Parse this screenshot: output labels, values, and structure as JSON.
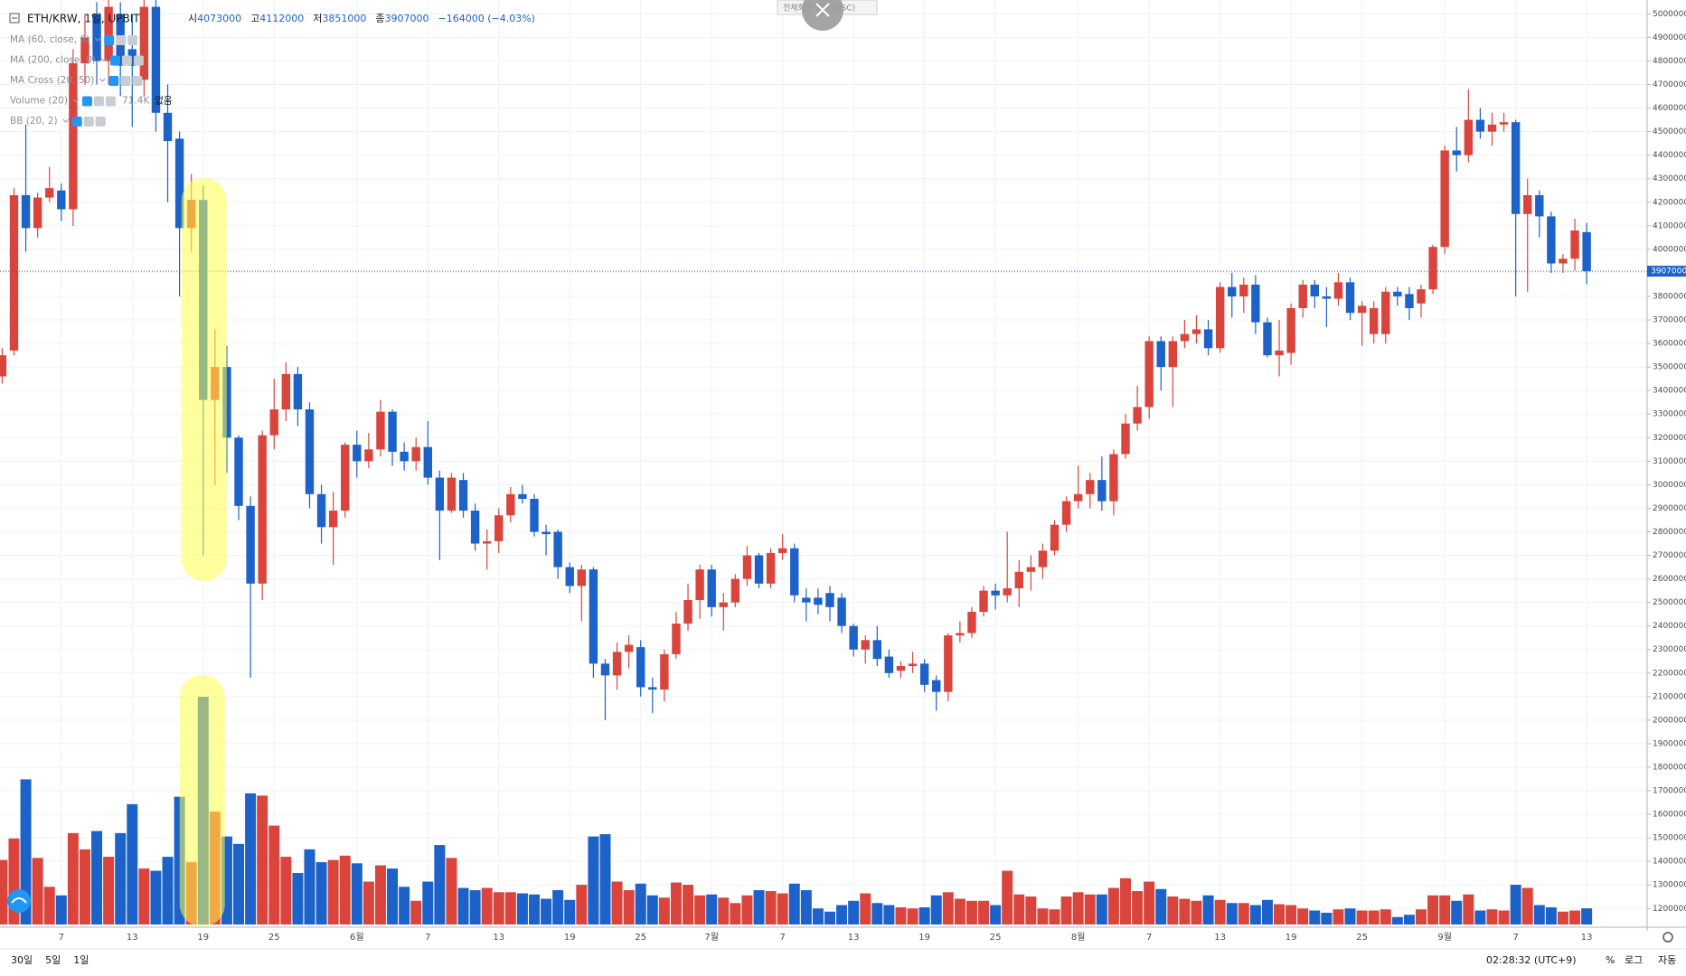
{
  "header": {
    "symbol": "ETH/KRW, 1일, UPBIT",
    "open_label": "시",
    "high_label": "고",
    "low_label": "저",
    "close_label": "종",
    "change": "−164000 (−4.03%)"
  },
  "indicators": [
    {
      "name": "MA (60, close, 0)"
    },
    {
      "name": "MA (200, close, 0)"
    },
    {
      "name": "MA Cross (20, 50)"
    },
    {
      "name": "Volume (20)",
      "value": "71.4K",
      "extra": "없음"
    },
    {
      "name": "BB (20, 2)"
    }
  ],
  "fullscreen_hint": "전체화면 종료 (ESC)",
  "toolbar": {
    "ranges": [
      "30일",
      "5일",
      "1일"
    ],
    "clock": "02:28:32 (UTC+9)",
    "percent": "%",
    "log": "로그",
    "auto": "자동"
  },
  "chart_data": {
    "type": "candlestick",
    "up_color": "#d9453d",
    "down_color": "#1c62c8",
    "grid": true,
    "last_price_line": true,
    "categories": [
      null,
      null,
      null,
      null,
      null,
      "7",
      null,
      null,
      null,
      null,
      null,
      "13",
      null,
      null,
      null,
      null,
      null,
      "19",
      null,
      null,
      null,
      null,
      null,
      "25",
      null,
      null,
      null,
      null,
      null,
      null,
      "6월",
      null,
      null,
      null,
      null,
      null,
      "7",
      null,
      null,
      null,
      null,
      null,
      "13",
      null,
      null,
      null,
      null,
      null,
      "19",
      null,
      null,
      null,
      null,
      null,
      "25",
      null,
      null,
      null,
      null,
      null,
      "7월",
      null,
      null,
      null,
      null,
      null,
      "7",
      null,
      null,
      null,
      null,
      null,
      "13",
      null,
      null,
      null,
      null,
      null,
      "19",
      null,
      null,
      null,
      null,
      null,
      "25",
      null,
      null,
      null,
      null,
      null,
      null,
      "8월",
      null,
      null,
      null,
      null,
      null,
      "7",
      null,
      null,
      null,
      null,
      null,
      "13",
      null,
      null,
      null,
      null,
      null,
      "19",
      null,
      null,
      null,
      null,
      null,
      "25",
      null,
      null,
      null,
      null,
      null,
      null,
      "9월",
      null,
      null,
      null,
      null,
      null,
      "7",
      null,
      null,
      null,
      null,
      null,
      "13"
    ],
    "open": [
      3460000,
      3570000,
      4230000,
      4090000,
      4220000,
      4250000,
      4170000,
      4790000,
      5000000,
      4800000,
      5000000,
      4850000,
      4720000,
      5030000,
      4580000,
      4470000,
      4090000,
      4210000,
      3360000,
      3500000,
      3200000,
      2910000,
      2580000,
      3210000,
      3320000,
      3470000,
      3320000,
      2960000,
      2820000,
      2890000,
      3170000,
      3100000,
      3150000,
      3310000,
      3140000,
      3100000,
      3160000,
      3030000,
      2890000,
      3020000,
      2890000,
      2750000,
      2760000,
      2870000,
      2960000,
      2940000,
      2800000,
      2800000,
      2650000,
      2570000,
      2640000,
      2240000,
      2190000,
      2290000,
      2310000,
      2140000,
      2130000,
      2280000,
      2410000,
      2510000,
      2640000,
      2480000,
      2500000,
      2600000,
      2700000,
      2580000,
      2710000,
      2730000,
      2520000,
      2520000,
      2540000,
      2520000,
      2400000,
      2300000,
      2340000,
      2270000,
      2210000,
      2230000,
      2240000,
      2170000,
      2120000,
      2360000,
      2370000,
      2460000,
      2550000,
      2530000,
      2560000,
      2630000,
      2650000,
      2720000,
      2830000,
      2930000,
      2960000,
      3020000,
      2930000,
      3130000,
      3260000,
      3330000,
      3610000,
      3500000,
      3610000,
      3640000,
      3660000,
      3580000,
      3840000,
      3800000,
      3850000,
      3690000,
      3550000,
      3560000,
      3750000,
      3850000,
      3800000,
      3790000,
      3860000,
      3730000,
      3640000,
      3640000,
      3820000,
      3810000,
      3770000,
      3830000,
      4010000,
      4420000,
      4400000,
      4550000,
      4500000,
      4530000,
      4540000,
      4150000,
      4230000,
      4140000,
      3940000,
      3960000,
      4073000
    ],
    "high": [
      3580000,
      4260000,
      4530000,
      4240000,
      4350000,
      4280000,
      4850000,
      5000000,
      5050000,
      5060000,
      5050000,
      5000000,
      5060000,
      5060000,
      4700000,
      4500000,
      4320000,
      4270000,
      3660000,
      3590000,
      3210000,
      2950000,
      3230000,
      3450000,
      3520000,
      3500000,
      3350000,
      3000000,
      2970000,
      3180000,
      3230000,
      3220000,
      3360000,
      3320000,
      3180000,
      3200000,
      3270000,
      3060000,
      3050000,
      3050000,
      2920000,
      2810000,
      2900000,
      2990000,
      3000000,
      2960000,
      2830000,
      2810000,
      2670000,
      2660000,
      2650000,
      2260000,
      2330000,
      2360000,
      2340000,
      2180000,
      2300000,
      2460000,
      2580000,
      2660000,
      2660000,
      2540000,
      2620000,
      2740000,
      2710000,
      2730000,
      2790000,
      2750000,
      2560000,
      2560000,
      2570000,
      2540000,
      2410000,
      2360000,
      2400000,
      2300000,
      2250000,
      2290000,
      2260000,
      2190000,
      2370000,
      2420000,
      2480000,
      2570000,
      2580000,
      2800000,
      2680000,
      2700000,
      2750000,
      2850000,
      2950000,
      3080000,
      3050000,
      3120000,
      3150000,
      3300000,
      3420000,
      3630000,
      3630000,
      3630000,
      3700000,
      3720000,
      3700000,
      3860000,
      3900000,
      3880000,
      3890000,
      3710000,
      3700000,
      3770000,
      3870000,
      3870000,
      3840000,
      3900000,
      3880000,
      3780000,
      3780000,
      3840000,
      3840000,
      3840000,
      3850000,
      4020000,
      4440000,
      4520000,
      4680000,
      4600000,
      4580000,
      4580000,
      4550000,
      4300000,
      4250000,
      4160000,
      3980000,
      4130000,
      4112000
    ],
    "low": [
      3430000,
      3550000,
      3990000,
      4050000,
      4200000,
      4120000,
      4100000,
      4700000,
      4700000,
      4700000,
      4650000,
      4520000,
      4650000,
      4500000,
      4200000,
      3800000,
      3990000,
      2700000,
      3000000,
      3050000,
      2850000,
      2180000,
      2510000,
      3150000,
      3270000,
      3250000,
      2900000,
      2750000,
      2660000,
      2860000,
      3030000,
      3070000,
      3120000,
      3080000,
      3060000,
      3060000,
      3000000,
      2680000,
      2880000,
      2860000,
      2720000,
      2640000,
      2710000,
      2840000,
      2920000,
      2780000,
      2700000,
      2600000,
      2540000,
      2420000,
      2180000,
      2000000,
      2130000,
      2220000,
      2100000,
      2030000,
      2080000,
      2260000,
      2380000,
      2430000,
      2440000,
      2380000,
      2480000,
      2570000,
      2560000,
      2560000,
      2680000,
      2500000,
      2420000,
      2450000,
      2420000,
      2370000,
      2270000,
      2240000,
      2230000,
      2180000,
      2180000,
      2200000,
      2120000,
      2040000,
      2080000,
      2330000,
      2350000,
      2440000,
      2470000,
      2500000,
      2480000,
      2550000,
      2600000,
      2700000,
      2800000,
      2900000,
      2900000,
      2890000,
      2870000,
      3110000,
      3230000,
      3280000,
      3400000,
      3330000,
      3580000,
      3600000,
      3550000,
      3560000,
      3710000,
      3730000,
      3640000,
      3540000,
      3460000,
      3510000,
      3710000,
      3750000,
      3670000,
      3760000,
      3700000,
      3590000,
      3600000,
      3600000,
      3760000,
      3700000,
      3710000,
      3810000,
      3980000,
      4330000,
      4370000,
      4470000,
      4440000,
      4500000,
      3800000,
      3820000,
      4050000,
      3900000,
      3900000,
      3910000,
      3851000
    ],
    "close": [
      3550000,
      4230000,
      4090000,
      4220000,
      4260000,
      4170000,
      4790000,
      4900000,
      4800000,
      5030000,
      4780000,
      4780000,
      5030000,
      4580000,
      4460000,
      4090000,
      4210000,
      3360000,
      3500000,
      3200000,
      2910000,
      2580000,
      3210000,
      3320000,
      3470000,
      3320000,
      2960000,
      2820000,
      2890000,
      3170000,
      3100000,
      3150000,
      3310000,
      3140000,
      3100000,
      3160000,
      3030000,
      2890000,
      3030000,
      2890000,
      2750000,
      2760000,
      2870000,
      2960000,
      2940000,
      2800000,
      2790000,
      2650000,
      2570000,
      2640000,
      2240000,
      2190000,
      2290000,
      2320000,
      2140000,
      2130000,
      2280000,
      2410000,
      2510000,
      2640000,
      2480000,
      2500000,
      2600000,
      2700000,
      2580000,
      2710000,
      2730000,
      2530000,
      2500000,
      2490000,
      2480000,
      2400000,
      2300000,
      2340000,
      2260000,
      2200000,
      2230000,
      2240000,
      2150000,
      2120000,
      2360000,
      2370000,
      2460000,
      2550000,
      2530000,
      2560000,
      2630000,
      2650000,
      2720000,
      2830000,
      2930000,
      2960000,
      3020000,
      2930000,
      3130000,
      3260000,
      3330000,
      3610000,
      3500000,
      3610000,
      3640000,
      3660000,
      3580000,
      3840000,
      3800000,
      3850000,
      3690000,
      3550000,
      3570000,
      3750000,
      3850000,
      3800000,
      3790000,
      3860000,
      3730000,
      3760000,
      3750000,
      3820000,
      3800000,
      3750000,
      3830000,
      4010000,
      4420000,
      4400000,
      4550000,
      4500000,
      4530000,
      4540000,
      4150000,
      4230000,
      4140000,
      3940000,
      3960000,
      4080000,
      3907000
    ],
    "volume": [
      286000,
      381000,
      643000,
      295000,
      167000,
      129000,
      405000,
      333000,
      414000,
      300000,
      405000,
      533000,
      248000,
      238000,
      300000,
      566000,
      276000,
      1009000,
      500000,
      390000,
      357000,
      581000,
      571000,
      438000,
      300000,
      228000,
      333000,
      276000,
      286000,
      305000,
      271000,
      190000,
      262000,
      248000,
      167000,
      105000,
      190000,
      352000,
      295000,
      162000,
      152000,
      162000,
      143000,
      143000,
      138000,
      133000,
      114000,
      152000,
      109000,
      176000,
      390000,
      400000,
      190000,
      152000,
      181000,
      129000,
      119000,
      186000,
      176000,
      129000,
      133000,
      119000,
      95000,
      129000,
      152000,
      148000,
      138000,
      181000,
      152000,
      71000,
      57000,
      86000,
      105000,
      138000,
      95000,
      86000,
      76000,
      71000,
      76000,
      129000,
      143000,
      114000,
      105000,
      105000,
      86000,
      238000,
      133000,
      124000,
      71000,
      67000,
      124000,
      143000,
      133000,
      133000,
      162000,
      205000,
      148000,
      190000,
      157000,
      124000,
      114000,
      105000,
      129000,
      109000,
      95000,
      95000,
      86000,
      109000,
      90000,
      86000,
      71000,
      62000,
      52000,
      67000,
      71000,
      62000,
      62000,
      67000,
      33000,
      43000,
      67000,
      129000,
      129000,
      105000,
      133000,
      62000,
      67000,
      62000,
      176000,
      162000,
      86000,
      76000,
      57000,
      62000,
      71400
    ],
    "ylim": [
      1132000,
      5059000
    ],
    "yticks": [
      1200000,
      1300000,
      1400000,
      1500000,
      1600000,
      1700000,
      1800000,
      1900000,
      2000000,
      2100000,
      2200000,
      2300000,
      2400000,
      2500000,
      2600000,
      2700000,
      2800000,
      2900000,
      3000000,
      3100000,
      3200000,
      3300000,
      3400000,
      3500000,
      3600000,
      3700000,
      3800000,
      3900000,
      4000000,
      4100000,
      4200000,
      4300000,
      4400000,
      4500000,
      4600000,
      4700000,
      4800000,
      4900000,
      5000000
    ]
  }
}
